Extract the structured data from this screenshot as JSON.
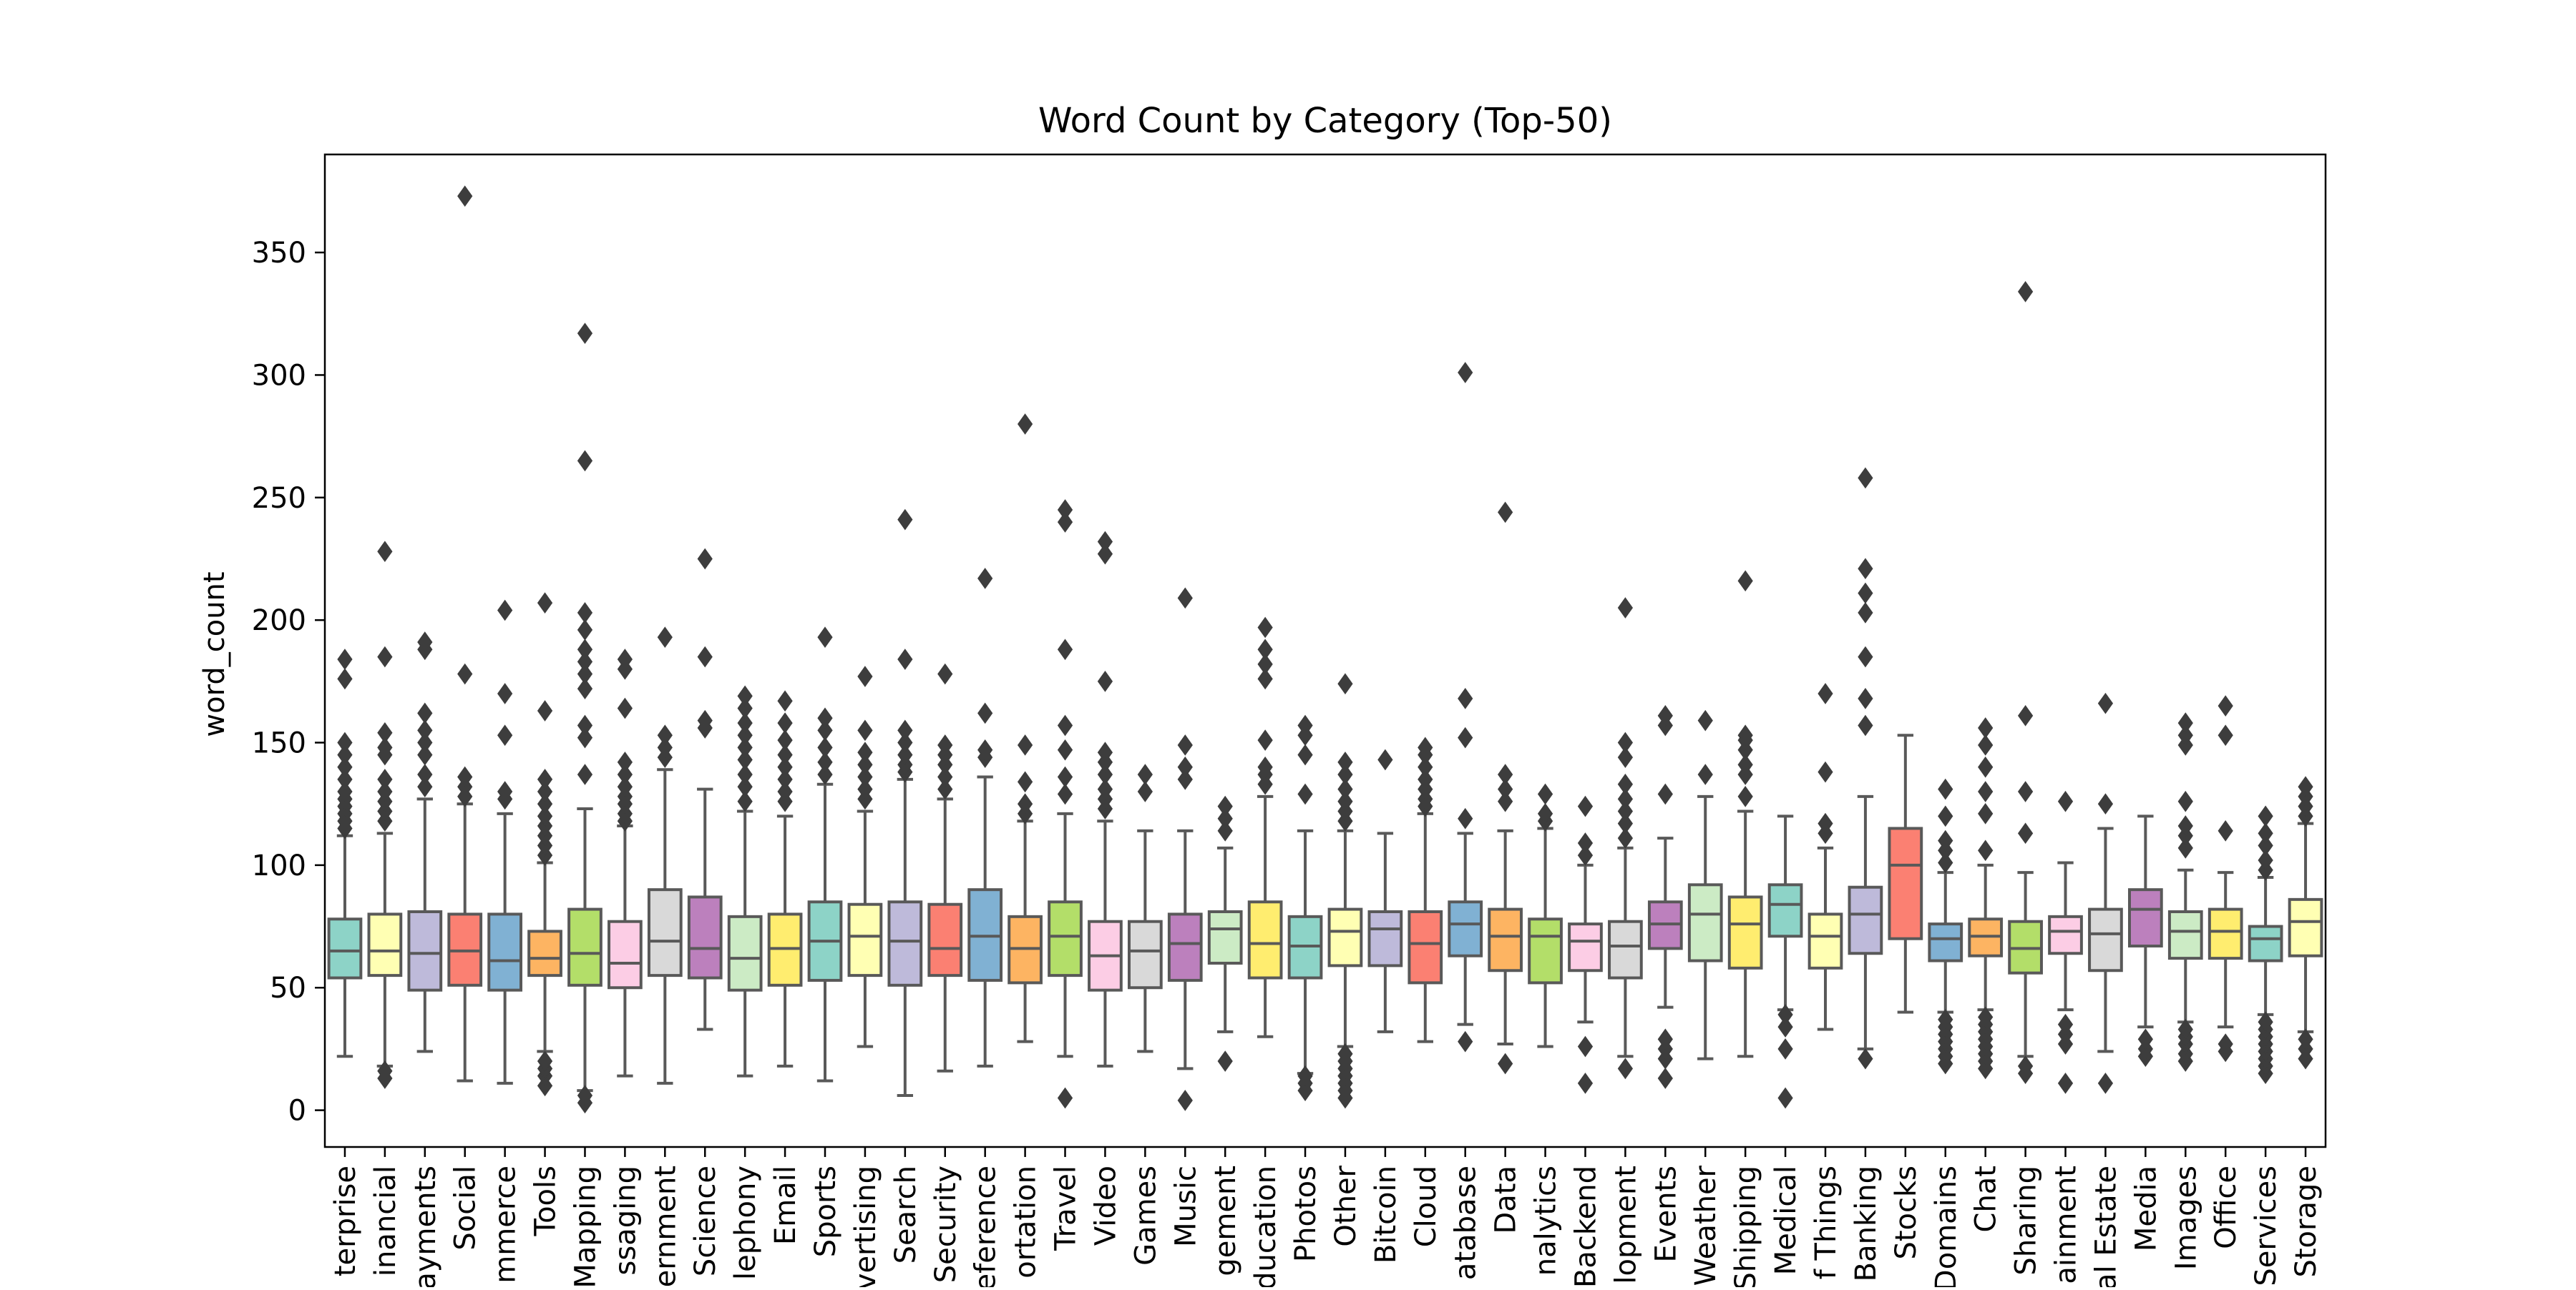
{
  "chart_data": {
    "type": "box",
    "title": "Word Count by Category (Top-50)",
    "xlabel": "",
    "ylabel": "word_count",
    "ylim": [
      -15,
      390
    ],
    "yticks": [
      0,
      50,
      100,
      150,
      200,
      250,
      300,
      350
    ],
    "palette": [
      "#8dd3c7",
      "#ffffb3",
      "#bebada",
      "#fb8072",
      "#80b1d3",
      "#fdb462",
      "#b3de69",
      "#fccde5",
      "#d9d9d9",
      "#bc80bd",
      "#ccebc5",
      "#ffed6f"
    ],
    "box_edge_color": "#595959",
    "grid": false,
    "legend": "none",
    "categories": [
      "Enterprise",
      "Financial",
      "Payments",
      "Social",
      "eCommerce",
      "Tools",
      "Mapping",
      "Messaging",
      "Government",
      "Science",
      "Telephony",
      "Email",
      "Sports",
      "Advertising",
      "Search",
      "Security",
      "Reference",
      "Transportation",
      "Travel",
      "Video",
      "Games",
      "Music",
      "Project Management",
      "Education",
      "Photos",
      "Other",
      "Bitcoin",
      "Cloud",
      "Database",
      "Data",
      "Analytics",
      "Backend",
      "Development",
      "Events",
      "Weather",
      "Shipping",
      "Medical",
      "Internet of Things",
      "Banking",
      "Stocks",
      "Domains",
      "Chat",
      "File Sharing",
      "Entertainment",
      "Real Estate",
      "Media",
      "Images",
      "Office",
      "Other Services",
      "Storage"
    ],
    "tick_labels": [
      "terprise",
      "inancial",
      "ayments",
      "Social",
      "mmerce",
      "Tools",
      "Mapping",
      "ssaging",
      "ernment",
      "Science",
      "lephony",
      "Email",
      "Sports",
      "vertising",
      "Search",
      "Security",
      "eference",
      "ortation",
      "Travel",
      "Video",
      "Games",
      "Music",
      "gement",
      "ducation",
      "Photos",
      "Other",
      "Bitcoin",
      "Cloud",
      "atabase",
      "Data",
      "nalytics",
      "Backend",
      "lopment",
      "Events",
      "Weather",
      "Shipping",
      "Medical",
      "f Things",
      "Banking",
      "Stocks",
      "Domains",
      "Chat",
      "Sharing",
      "ainment",
      "al Estate",
      "Media",
      "Images",
      "Office",
      "Services",
      "Storage"
    ],
    "boxes": [
      {
        "q1": 54,
        "median": 65,
        "q3": 78,
        "whisker_low": 22,
        "whisker_high": 112,
        "outliers": [
          115,
          118,
          121,
          124,
          127,
          130,
          135,
          140,
          145,
          150,
          176,
          184
        ]
      },
      {
        "q1": 55,
        "median": 65,
        "q3": 80,
        "whisker_low": 18,
        "whisker_high": 113,
        "outliers": [
          13,
          16,
          118,
          122,
          126,
          130,
          135,
          145,
          148,
          154,
          185,
          228
        ]
      },
      {
        "q1": 49,
        "median": 64,
        "q3": 81,
        "whisker_low": 24,
        "whisker_high": 127,
        "outliers": [
          132,
          137,
          145,
          150,
          155,
          162,
          188,
          191
        ]
      },
      {
        "q1": 51,
        "median": 65,
        "q3": 80,
        "whisker_low": 12,
        "whisker_high": 125,
        "outliers": [
          128,
          132,
          136,
          178,
          373
        ]
      },
      {
        "q1": 49,
        "median": 61,
        "q3": 80,
        "whisker_low": 11,
        "whisker_high": 121,
        "outliers": [
          127,
          130,
          153,
          170,
          204
        ]
      },
      {
        "q1": 55,
        "median": 62,
        "q3": 73,
        "whisker_low": 24,
        "whisker_high": 101,
        "outliers": [
          10,
          14,
          17,
          20,
          104,
          108,
          112,
          116,
          120,
          125,
          130,
          135,
          163,
          207
        ]
      },
      {
        "q1": 51,
        "median": 64,
        "q3": 82,
        "whisker_low": 8,
        "whisker_high": 123,
        "outliers": [
          3,
          6,
          137,
          152,
          157,
          172,
          178,
          183,
          188,
          196,
          203,
          265,
          317
        ]
      },
      {
        "q1": 50,
        "median": 60,
        "q3": 77,
        "whisker_low": 14,
        "whisker_high": 116,
        "outliers": [
          118,
          121,
          125,
          128,
          132,
          137,
          142,
          164,
          180,
          184
        ]
      },
      {
        "q1": 55,
        "median": 69,
        "q3": 90,
        "whisker_low": 11,
        "whisker_high": 139,
        "outliers": [
          144,
          148,
          153,
          193
        ]
      },
      {
        "q1": 54,
        "median": 66,
        "q3": 87,
        "whisker_low": 33,
        "whisker_high": 131,
        "outliers": [
          156,
          159,
          185,
          225
        ]
      },
      {
        "q1": 49,
        "median": 62,
        "q3": 79,
        "whisker_low": 14,
        "whisker_high": 122,
        "outliers": [
          126,
          132,
          137,
          143,
          148,
          153,
          158,
          164,
          169
        ]
      },
      {
        "q1": 51,
        "median": 66,
        "q3": 80,
        "whisker_low": 18,
        "whisker_high": 120,
        "outliers": [
          126,
          130,
          135,
          140,
          145,
          151,
          158,
          167
        ]
      },
      {
        "q1": 53,
        "median": 69,
        "q3": 85,
        "whisker_low": 12,
        "whisker_high": 133,
        "outliers": [
          137,
          142,
          148,
          155,
          160,
          193
        ]
      },
      {
        "q1": 55,
        "median": 71,
        "q3": 84,
        "whisker_low": 26,
        "whisker_high": 122,
        "outliers": [
          127,
          131,
          136,
          141,
          146,
          155,
          177
        ]
      },
      {
        "q1": 51,
        "median": 69,
        "q3": 85,
        "whisker_low": 6,
        "whisker_high": 135,
        "outliers": [
          138,
          141,
          145,
          150,
          155,
          184,
          241
        ]
      },
      {
        "q1": 55,
        "median": 66,
        "q3": 84,
        "whisker_low": 16,
        "whisker_high": 127,
        "outliers": [
          131,
          136,
          141,
          145,
          149,
          178
        ]
      },
      {
        "q1": 53,
        "median": 71,
        "q3": 90,
        "whisker_low": 18,
        "whisker_high": 136,
        "outliers": [
          144,
          147,
          162,
          217
        ]
      },
      {
        "q1": 52,
        "median": 66,
        "q3": 79,
        "whisker_low": 28,
        "whisker_high": 118,
        "outliers": [
          121,
          125,
          134,
          149,
          280
        ]
      },
      {
        "q1": 55,
        "median": 71,
        "q3": 85,
        "whisker_low": 22,
        "whisker_high": 121,
        "outliers": [
          5,
          129,
          136,
          147,
          157,
          188,
          240,
          245
        ]
      },
      {
        "q1": 49,
        "median": 63,
        "q3": 77,
        "whisker_low": 18,
        "whisker_high": 118,
        "outliers": [
          123,
          127,
          131,
          137,
          142,
          146,
          175,
          227,
          232
        ]
      },
      {
        "q1": 50,
        "median": 65,
        "q3": 77,
        "whisker_low": 24,
        "whisker_high": 114,
        "outliers": [
          130,
          137
        ]
      },
      {
        "q1": 53,
        "median": 68,
        "q3": 80,
        "whisker_low": 17,
        "whisker_high": 114,
        "outliers": [
          4,
          135,
          140,
          149,
          209
        ]
      },
      {
        "q1": 60,
        "median": 74,
        "q3": 81,
        "whisker_low": 32,
        "whisker_high": 107,
        "outliers": [
          20,
          114,
          119,
          124
        ]
      },
      {
        "q1": 54,
        "median": 68,
        "q3": 85,
        "whisker_low": 30,
        "whisker_high": 128,
        "outliers": [
          133,
          137,
          140,
          151,
          176,
          182,
          188,
          197
        ]
      },
      {
        "q1": 54,
        "median": 67,
        "q3": 79,
        "whisker_low": 15,
        "whisker_high": 114,
        "outliers": [
          8,
          11,
          14,
          129,
          145,
          153,
          157
        ]
      },
      {
        "q1": 59,
        "median": 73,
        "q3": 82,
        "whisker_low": 26,
        "whisker_high": 114,
        "outliers": [
          5,
          8,
          11,
          14,
          17,
          20,
          23,
          118,
          122,
          126,
          131,
          137,
          142,
          174
        ]
      },
      {
        "q1": 59,
        "median": 74,
        "q3": 81,
        "whisker_low": 32,
        "whisker_high": 113,
        "outliers": [
          143
        ]
      },
      {
        "q1": 52,
        "median": 68,
        "q3": 81,
        "whisker_low": 28,
        "whisker_high": 121,
        "outliers": [
          124,
          127,
          131,
          135,
          140,
          145,
          148
        ]
      },
      {
        "q1": 63,
        "median": 76,
        "q3": 85,
        "whisker_low": 35,
        "whisker_high": 113,
        "outliers": [
          28,
          119,
          152,
          168,
          301
        ]
      },
      {
        "q1": 57,
        "median": 71,
        "q3": 82,
        "whisker_low": 27,
        "whisker_high": 114,
        "outliers": [
          19,
          126,
          131,
          137,
          244
        ]
      },
      {
        "q1": 52,
        "median": 71,
        "q3": 78,
        "whisker_low": 26,
        "whisker_high": 115,
        "outliers": [
          118,
          121,
          129
        ]
      },
      {
        "q1": 57,
        "median": 69,
        "q3": 76,
        "whisker_low": 36,
        "whisker_high": 100,
        "outliers": [
          11,
          26,
          104,
          109,
          124
        ]
      },
      {
        "q1": 54,
        "median": 67,
        "q3": 77,
        "whisker_low": 22,
        "whisker_high": 107,
        "outliers": [
          17,
          111,
          117,
          122,
          127,
          133,
          144,
          150,
          205
        ]
      },
      {
        "q1": 66,
        "median": 76,
        "q3": 85,
        "whisker_low": 42,
        "whisker_high": 111,
        "outliers": [
          13,
          21,
          25,
          29,
          129,
          157,
          161
        ]
      },
      {
        "q1": 61,
        "median": 80,
        "q3": 92,
        "whisker_low": 21,
        "whisker_high": 128,
        "outliers": [
          137,
          159
        ]
      },
      {
        "q1": 58,
        "median": 76,
        "q3": 87,
        "whisker_low": 22,
        "whisker_high": 122,
        "outliers": [
          128,
          137,
          141,
          147,
          151,
          153,
          216
        ]
      },
      {
        "q1": 71,
        "median": 84,
        "q3": 92,
        "whisker_low": 41,
        "whisker_high": 120,
        "outliers": [
          5,
          25,
          34,
          39
        ]
      },
      {
        "q1": 58,
        "median": 71,
        "q3": 80,
        "whisker_low": 33,
        "whisker_high": 107,
        "outliers": [
          113,
          117,
          138,
          170
        ]
      },
      {
        "q1": 64,
        "median": 80,
        "q3": 91,
        "whisker_low": 25,
        "whisker_high": 128,
        "outliers": [
          21,
          157,
          168,
          185,
          203,
          211,
          221,
          258
        ]
      },
      {
        "q1": 70,
        "median": 100,
        "q3": 115,
        "whisker_low": 40,
        "whisker_high": 153,
        "outliers": []
      },
      {
        "q1": 61,
        "median": 70,
        "q3": 76,
        "whisker_low": 40,
        "whisker_high": 97,
        "outliers": [
          19,
          22,
          25,
          28,
          31,
          34,
          37,
          101,
          106,
          110,
          120,
          131
        ]
      },
      {
        "q1": 63,
        "median": 71,
        "q3": 78,
        "whisker_low": 41,
        "whisker_high": 100,
        "outliers": [
          17,
          20,
          23,
          26,
          29,
          32,
          35,
          38,
          106,
          121,
          130,
          140,
          149,
          156
        ]
      },
      {
        "q1": 56,
        "median": 66,
        "q3": 77,
        "whisker_low": 22,
        "whisker_high": 97,
        "outliers": [
          15,
          18,
          113,
          130,
          161,
          334
        ]
      },
      {
        "q1": 64,
        "median": 73,
        "q3": 79,
        "whisker_low": 41,
        "whisker_high": 101,
        "outliers": [
          11,
          27,
          31,
          35,
          126
        ]
      },
      {
        "q1": 57,
        "median": 72,
        "q3": 82,
        "whisker_low": 24,
        "whisker_high": 115,
        "outliers": [
          11,
          125,
          166
        ]
      },
      {
        "q1": 67,
        "median": 82,
        "q3": 90,
        "whisker_low": 34,
        "whisker_high": 120,
        "outliers": [
          22,
          25,
          29
        ]
      },
      {
        "q1": 62,
        "median": 73,
        "q3": 81,
        "whisker_low": 36,
        "whisker_high": 98,
        "outliers": [
          20,
          23,
          27,
          30,
          33,
          107,
          112,
          116,
          126,
          149,
          153,
          158
        ]
      },
      {
        "q1": 62,
        "median": 73,
        "q3": 82,
        "whisker_low": 34,
        "whisker_high": 97,
        "outliers": [
          24,
          27,
          114,
          153,
          165
        ]
      },
      {
        "q1": 61,
        "median": 70,
        "q3": 75,
        "whisker_low": 39,
        "whisker_high": 95,
        "outliers": [
          15,
          18,
          21,
          24,
          27,
          30,
          33,
          36,
          98,
          102,
          108,
          113,
          120
        ]
      },
      {
        "q1": 63,
        "median": 77,
        "q3": 86,
        "whisker_low": 32,
        "whisker_high": 117,
        "outliers": [
          21,
          25,
          29,
          120,
          124,
          128,
          132
        ]
      }
    ]
  }
}
